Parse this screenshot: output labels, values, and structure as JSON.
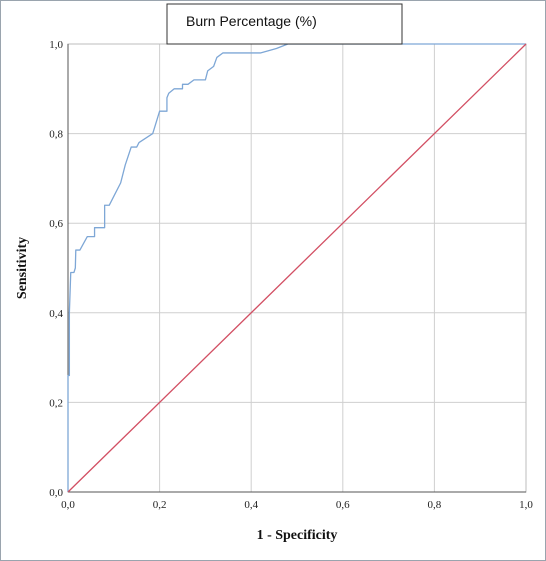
{
  "chart_data": {
    "type": "line",
    "xlabel": "1 - Specificity",
    "ylabel": "Sensitivity",
    "xlim": [
      0,
      1
    ],
    "ylim": [
      0,
      1
    ],
    "xticks": [
      "0,0",
      "0,2",
      "0,4",
      "0,6",
      "0,8",
      "1,0"
    ],
    "yticks": [
      "0,0",
      "0,2",
      "0,4",
      "0,6",
      "0,8",
      "1,0"
    ],
    "grid": true,
    "legend_placement": "top-center",
    "series": [
      {
        "name": "Burn Percentage (%)",
        "color": "#7ea7d6",
        "x": [
          0.0,
          0.0,
          0.003,
          0.003,
          0.006,
          0.008,
          0.013,
          0.016,
          0.017,
          0.026,
          0.026,
          0.042,
          0.042,
          0.058,
          0.058,
          0.08,
          0.08,
          0.087,
          0.09,
          0.1,
          0.115,
          0.125,
          0.138,
          0.15,
          0.155,
          0.185,
          0.2,
          0.2,
          0.216,
          0.216,
          0.22,
          0.232,
          0.25,
          0.25,
          0.262,
          0.275,
          0.3,
          0.305,
          0.318,
          0.325,
          0.338,
          0.42,
          0.455,
          0.48,
          0.5,
          1.0
        ],
        "y": [
          0.0,
          0.26,
          0.26,
          0.4,
          0.49,
          0.49,
          0.49,
          0.5,
          0.54,
          0.54,
          0.54,
          0.57,
          0.57,
          0.57,
          0.59,
          0.59,
          0.64,
          0.64,
          0.64,
          0.66,
          0.69,
          0.73,
          0.77,
          0.77,
          0.78,
          0.8,
          0.85,
          0.85,
          0.85,
          0.88,
          0.89,
          0.9,
          0.9,
          0.91,
          0.91,
          0.92,
          0.92,
          0.94,
          0.95,
          0.97,
          0.98,
          0.98,
          0.99,
          1.0,
          1.0,
          1.0
        ]
      },
      {
        "name": "",
        "color": "#d24f63",
        "x": [
          0,
          1
        ],
        "y": [
          0,
          1
        ]
      }
    ]
  }
}
